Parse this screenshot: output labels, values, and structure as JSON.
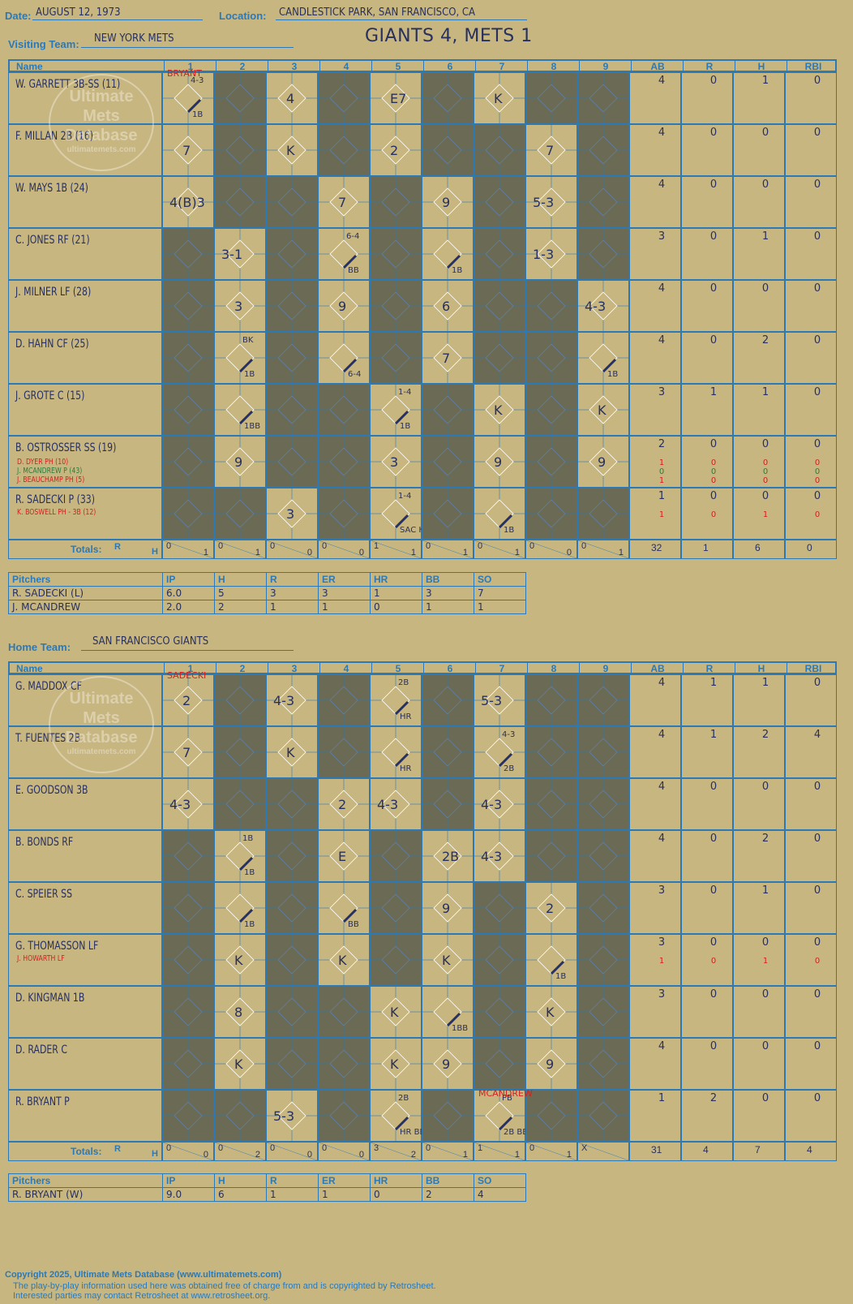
{
  "header": {
    "date_label": "Date:",
    "date": "AUGUST 12, 1973",
    "location_label": "Location:",
    "location": "CANDLESTICK PARK, SAN FRANCISCO, CA",
    "visiting_label": "Visiting Team:",
    "visiting_team": "NEW YORK METS",
    "home_label": "Home Team:",
    "home_team": "SAN FRANCISCO GIANTS",
    "result": "GIANTS 4, METS 1"
  },
  "columns": {
    "name": "Name",
    "innings": [
      "1",
      "2",
      "3",
      "4",
      "5",
      "6",
      "7",
      "8",
      "9"
    ],
    "stats": [
      "AB",
      "R",
      "H",
      "RBI"
    ]
  },
  "colors": {
    "line": "#2b79b7",
    "ink": "#27305e",
    "shade": "#6b6b55",
    "paper": "#c8b680",
    "red": "#d42020",
    "green": "#2e7a3c"
  },
  "visiting": {
    "opp_pitcher_note": "BRYANT",
    "players": [
      {
        "name": "W. GARRETT 3B-SS (11)",
        "subs": [],
        "ab": [
          "4"
        ],
        "r": [
          "0"
        ],
        "h": [
          "1"
        ],
        "rbi": [
          "0"
        ]
      },
      {
        "name": "F. MILLAN 2B (16)",
        "subs": [],
        "ab": [
          "4"
        ],
        "r": [
          "0"
        ],
        "h": [
          "0"
        ],
        "rbi": [
          "0"
        ]
      },
      {
        "name": "W. MAYS 1B (24)",
        "subs": [],
        "ab": [
          "4"
        ],
        "r": [
          "0"
        ],
        "h": [
          "0"
        ],
        "rbi": [
          "0"
        ]
      },
      {
        "name": "C. JONES RF (21)",
        "subs": [],
        "ab": [
          "3"
        ],
        "r": [
          "0"
        ],
        "h": [
          "1"
        ],
        "rbi": [
          "0"
        ]
      },
      {
        "name": "J. MILNER LF (28)",
        "subs": [],
        "ab": [
          "4"
        ],
        "r": [
          "0"
        ],
        "h": [
          "0"
        ],
        "rbi": [
          "0"
        ]
      },
      {
        "name": "D. HAHN CF (25)",
        "subs": [],
        "ab": [
          "4"
        ],
        "r": [
          "0"
        ],
        "h": [
          "2"
        ],
        "rbi": [
          "0"
        ]
      },
      {
        "name": "J. GROTE C (15)",
        "subs": [],
        "ab": [
          "3"
        ],
        "r": [
          "1"
        ],
        "h": [
          "1"
        ],
        "rbi": [
          "0"
        ]
      },
      {
        "name": "B. OSTROSSER SS (19)",
        "subs": [
          "D. DYER PH (10)",
          "J. MCANDREW P (43)",
          "J. BEAUCHAMP PH (5)"
        ],
        "ab": [
          "2",
          "1",
          "0",
          "1"
        ],
        "r": [
          "0",
          "0",
          "0",
          "0"
        ],
        "h": [
          "0",
          "0",
          "0",
          "0"
        ],
        "rbi": [
          "0",
          "0",
          "0",
          "0"
        ]
      },
      {
        "name": "R. SADECKI P (33)",
        "subs": [
          "K. BOSWELL PH - 3B (12)"
        ],
        "ab": [
          "1",
          "1"
        ],
        "r": [
          "0",
          "0"
        ],
        "h": [
          "0",
          "1"
        ],
        "rbi": [
          "0",
          "0"
        ]
      }
    ],
    "totals_label": "Totals:",
    "rh_r": "R",
    "rh_h": "H",
    "inning_totals": [
      [
        "0",
        "1"
      ],
      [
        "0",
        "1"
      ],
      [
        "0",
        "0"
      ],
      [
        "0",
        "0"
      ],
      [
        "1",
        "1"
      ],
      [
        "0",
        "1"
      ],
      [
        "0",
        "1"
      ],
      [
        "0",
        "0"
      ],
      [
        "0",
        "1"
      ]
    ],
    "totals": [
      "32",
      "1",
      "6",
      "0"
    ],
    "pitchers_header": [
      "Pitchers",
      "IP",
      "H",
      "R",
      "ER",
      "HR",
      "BB",
      "SO"
    ],
    "pitchers": [
      [
        "R. SADECKI (L)",
        "6.0",
        "5",
        "3",
        "3",
        "1",
        "3",
        "7"
      ],
      [
        "J. MCANDREW",
        "2.0",
        "2",
        "1",
        "1",
        "0",
        "1",
        "1"
      ]
    ]
  },
  "home": {
    "opp_pitcher_note": "SADECKI",
    "opp_pitcher_note2": "MCANDREW",
    "players": [
      {
        "name": "G. MADDOX CF",
        "subs": [],
        "ab": [
          "4"
        ],
        "r": [
          "1"
        ],
        "h": [
          "1"
        ],
        "rbi": [
          "0"
        ]
      },
      {
        "name": "T. FUENTES 2B",
        "subs": [],
        "ab": [
          "4"
        ],
        "r": [
          "1"
        ],
        "h": [
          "2"
        ],
        "rbi": [
          "4"
        ]
      },
      {
        "name": "E. GOODSON 3B",
        "subs": [],
        "ab": [
          "4"
        ],
        "r": [
          "0"
        ],
        "h": [
          "0"
        ],
        "rbi": [
          "0"
        ]
      },
      {
        "name": "B. BONDS RF",
        "subs": [],
        "ab": [
          "4"
        ],
        "r": [
          "0"
        ],
        "h": [
          "2"
        ],
        "rbi": [
          "0"
        ]
      },
      {
        "name": "C. SPEIER SS",
        "subs": [],
        "ab": [
          "3"
        ],
        "r": [
          "0"
        ],
        "h": [
          "1"
        ],
        "rbi": [
          "0"
        ]
      },
      {
        "name": "G. THOMASSON LF",
        "subs": [
          "J. HOWARTH LF"
        ],
        "ab": [
          "3",
          "1"
        ],
        "r": [
          "0",
          "0"
        ],
        "h": [
          "0",
          "1"
        ],
        "rbi": [
          "0",
          "0"
        ]
      },
      {
        "name": "D. KINGMAN 1B",
        "subs": [],
        "ab": [
          "3"
        ],
        "r": [
          "0"
        ],
        "h": [
          "0"
        ],
        "rbi": [
          "0"
        ]
      },
      {
        "name": "D. RADER C",
        "subs": [],
        "ab": [
          "4"
        ],
        "r": [
          "0"
        ],
        "h": [
          "0"
        ],
        "rbi": [
          "0"
        ]
      },
      {
        "name": "R. BRYANT P",
        "subs": [],
        "ab": [
          "1"
        ],
        "r": [
          "2"
        ],
        "h": [
          "0"
        ],
        "rbi": [
          "0"
        ]
      }
    ],
    "totals_label": "Totals:",
    "rh_r": "R",
    "rh_h": "H",
    "inning_totals": [
      [
        "0",
        "0"
      ],
      [
        "0",
        "2"
      ],
      [
        "0",
        "0"
      ],
      [
        "0",
        "0"
      ],
      [
        "3",
        "2"
      ],
      [
        "0",
        "1"
      ],
      [
        "1",
        "1"
      ],
      [
        "0",
        "1"
      ],
      [
        "X",
        ""
      ]
    ],
    "totals": [
      "31",
      "4",
      "7",
      "4"
    ],
    "pitchers_header": [
      "Pitchers",
      "IP",
      "H",
      "R",
      "ER",
      "HR",
      "BB",
      "SO"
    ],
    "pitchers": [
      [
        "R. BRYANT (W)",
        "9.0",
        "6",
        "1",
        "1",
        "0",
        "2",
        "4"
      ]
    ]
  },
  "plays": {
    "v": [
      [
        [
          "1",
          "4-3",
          "1B"
        ],
        [
          "3",
          "4",
          ""
        ],
        [
          "5",
          "E7",
          ""
        ],
        [
          "7",
          "K",
          ""
        ]
      ],
      [
        [
          "1",
          "7",
          ""
        ],
        [
          "3",
          "K",
          ""
        ],
        [
          "5",
          "2",
          ""
        ],
        [
          "8",
          "7",
          ""
        ]
      ],
      [
        [
          "1",
          "4(B)3",
          ""
        ],
        [
          "4",
          "7",
          ""
        ],
        [
          "6",
          "9",
          ""
        ],
        [
          "8",
          "5-3",
          ""
        ]
      ],
      [
        [
          "2",
          "3-1",
          ""
        ],
        [
          "4",
          "6-4",
          "BB"
        ],
        [
          "6",
          "",
          "1B"
        ],
        [
          "8",
          "1-3",
          ""
        ]
      ],
      [
        [
          "2",
          "3",
          ""
        ],
        [
          "4",
          "9",
          ""
        ],
        [
          "6",
          "6",
          ""
        ],
        [
          "9",
          "4-3",
          ""
        ]
      ],
      [
        [
          "2",
          "BK",
          "1B"
        ],
        [
          "4",
          "",
          "6-4"
        ],
        [
          "6",
          "7",
          ""
        ],
        [
          "9",
          "",
          "1B"
        ]
      ],
      [
        [
          "2",
          "",
          "1BB"
        ],
        [
          "5",
          "1-4",
          "1B"
        ],
        [
          "7",
          "K",
          ""
        ],
        [
          "9",
          "K",
          ""
        ]
      ],
      [
        [
          "2",
          "9",
          ""
        ],
        [
          "5",
          "3",
          ""
        ],
        [
          "7",
          "9",
          ""
        ],
        [
          "9",
          "9",
          ""
        ]
      ],
      [
        [
          "3",
          "3",
          ""
        ],
        [
          "5",
          "1-4",
          "SAC HIT"
        ],
        [
          "7",
          "",
          "1B"
        ]
      ]
    ],
    "h": [
      [
        [
          "1",
          "2",
          ""
        ],
        [
          "3",
          "4-3",
          ""
        ],
        [
          "5",
          "2B",
          "HR"
        ],
        [
          "7",
          "5-3",
          ""
        ]
      ],
      [
        [
          "1",
          "7",
          ""
        ],
        [
          "3",
          "K",
          ""
        ],
        [
          "5",
          "",
          "HR"
        ],
        [
          "7",
          "4-3",
          "2B"
        ]
      ],
      [
        [
          "1",
          "4-3",
          ""
        ],
        [
          "4",
          "2",
          ""
        ],
        [
          "5",
          "4-3",
          ""
        ],
        [
          "7",
          "4-3",
          ""
        ]
      ],
      [
        [
          "2",
          "1B",
          "1B"
        ],
        [
          "4",
          "E",
          ""
        ],
        [
          "6",
          "2B",
          ""
        ],
        [
          "7",
          "4-3",
          ""
        ]
      ],
      [
        [
          "2",
          "",
          "1B"
        ],
        [
          "4",
          "",
          "BB"
        ],
        [
          "6",
          "9",
          ""
        ],
        [
          "8",
          "2",
          ""
        ]
      ],
      [
        [
          "2",
          "K",
          ""
        ],
        [
          "4",
          "K",
          ""
        ],
        [
          "6",
          "K",
          ""
        ],
        [
          "8",
          "",
          "1B"
        ]
      ],
      [
        [
          "2",
          "8",
          ""
        ],
        [
          "5",
          "K",
          ""
        ],
        [
          "6",
          "",
          "1BB"
        ],
        [
          "8",
          "K",
          ""
        ]
      ],
      [
        [
          "2",
          "K",
          ""
        ],
        [
          "5",
          "K",
          ""
        ],
        [
          "6",
          "9",
          ""
        ],
        [
          "8",
          "9",
          ""
        ]
      ],
      [
        [
          "3",
          "5-3",
          ""
        ],
        [
          "5",
          "2B",
          "HR BB"
        ],
        [
          "7",
          "PB",
          "2B BB"
        ]
      ]
    ]
  },
  "watermark": {
    "line1": "Ultimate",
    "line2": "Mets",
    "line3": "Database",
    "url": "ultimatemets.com"
  },
  "footer": {
    "line1": "Copyright 2025, Ultimate Mets Database (www.ultimatemets.com)",
    "line2": "The play-by-play information used here was obtained free of charge from and is copyrighted by Retrosheet.",
    "line3": "Interested parties may contact Retrosheet at www.retrosheet.org."
  }
}
